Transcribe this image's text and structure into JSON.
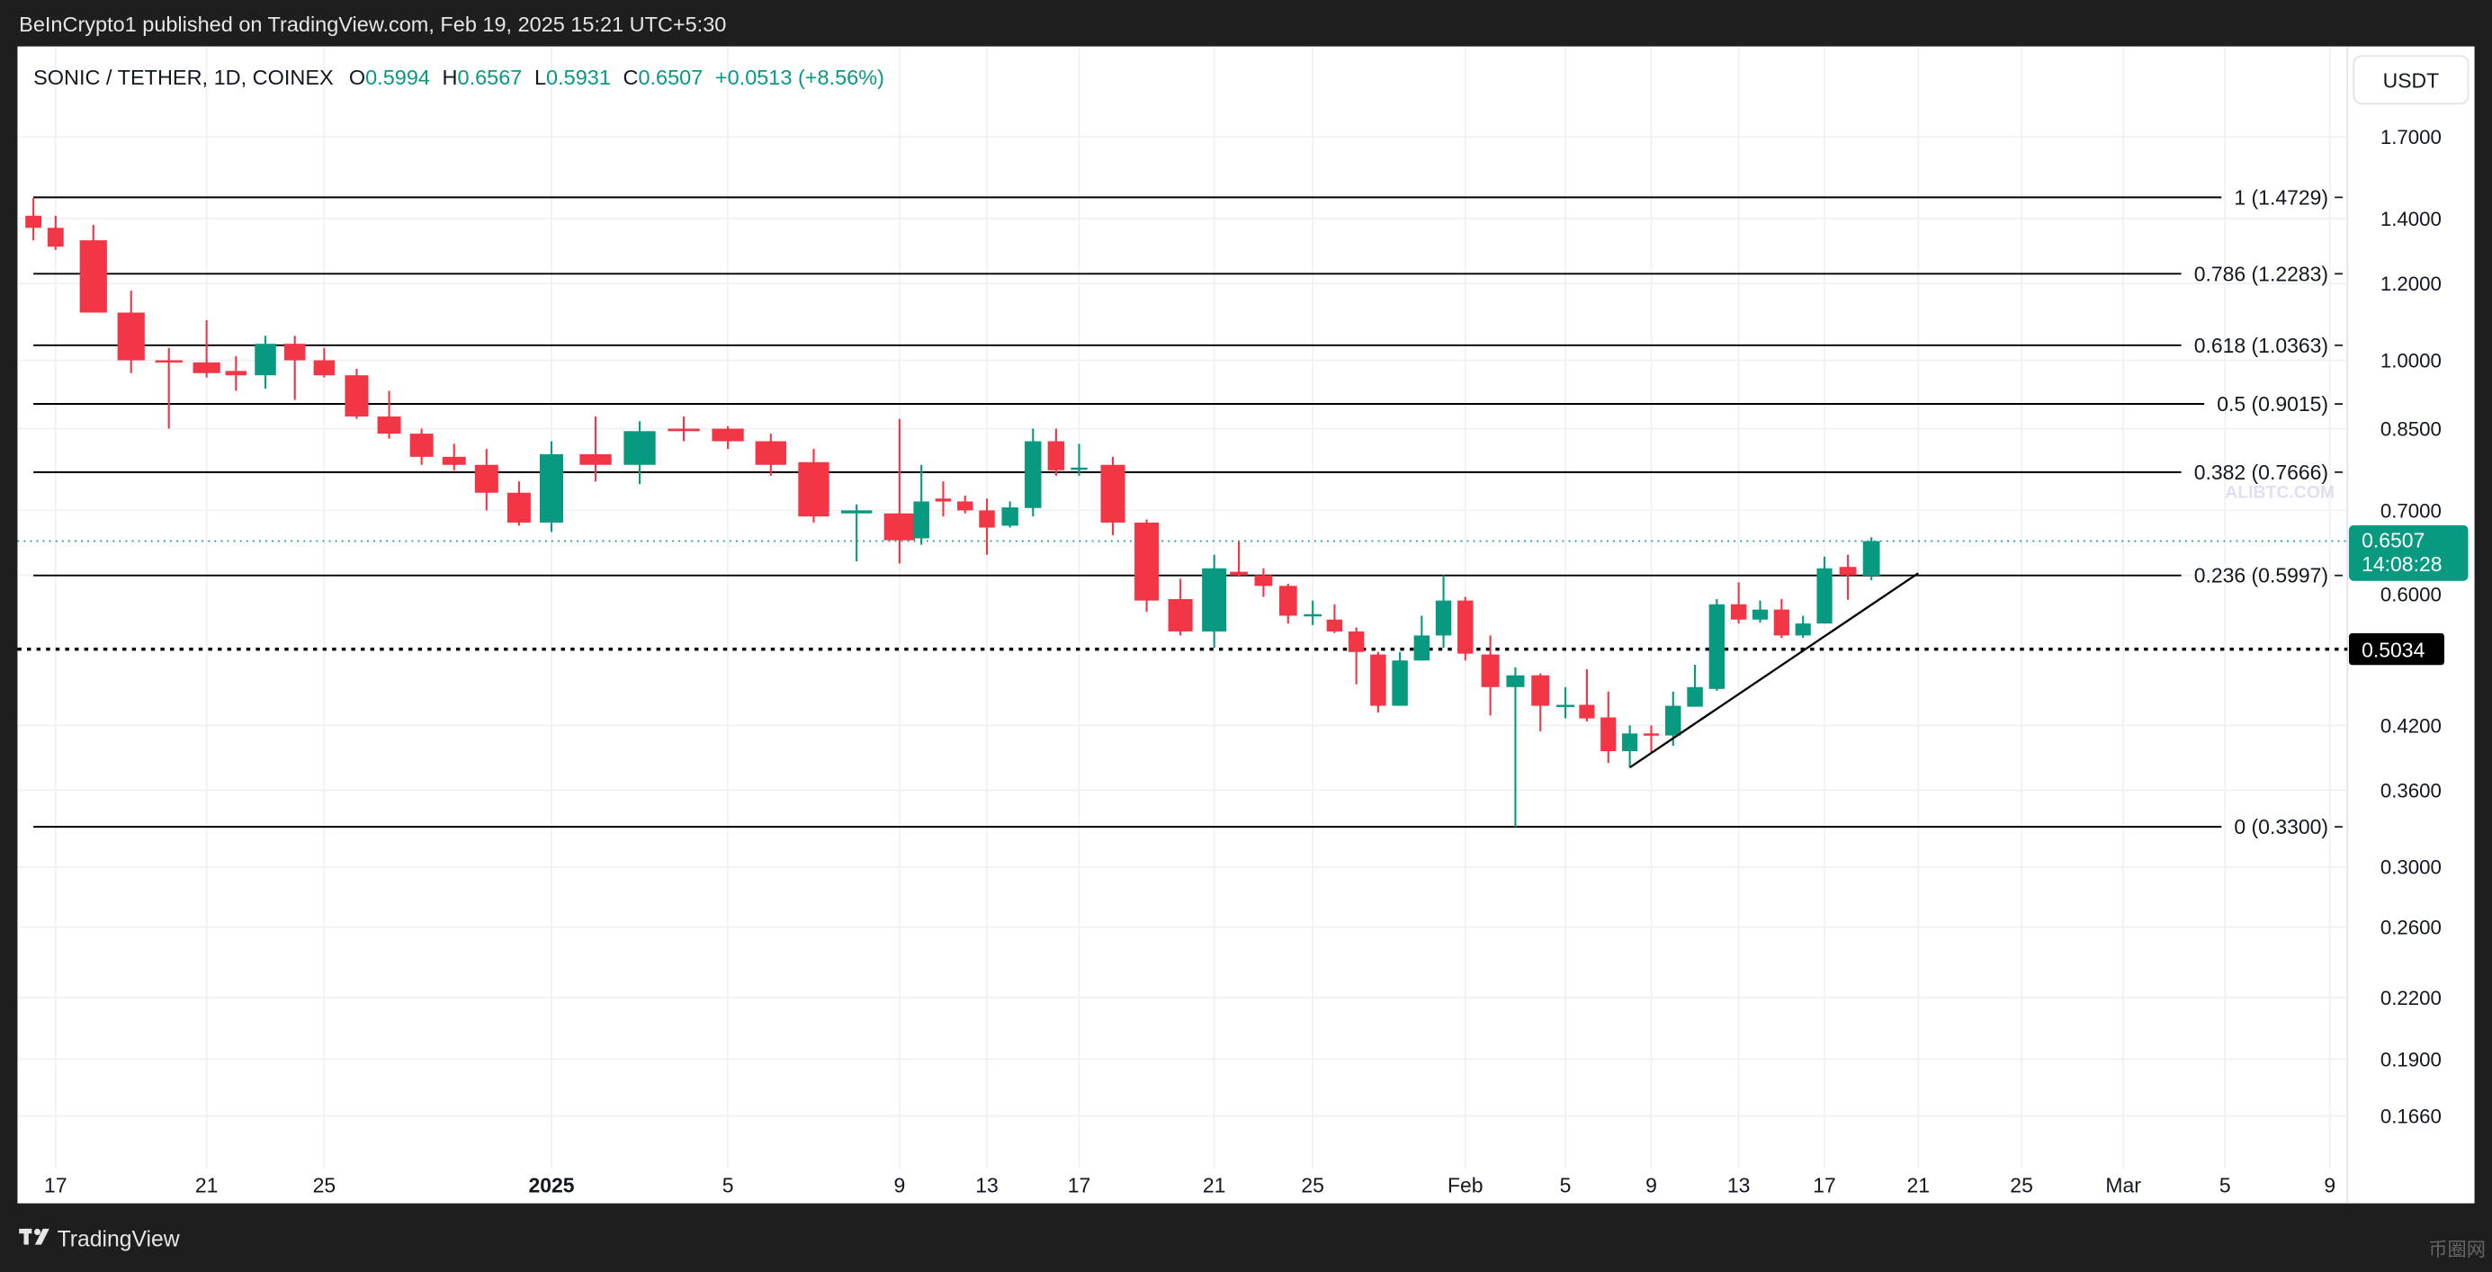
{
  "header": {
    "published": "BeInCrypto1 published on TradingView.com, Feb 19, 2025 15:21 UTC+5:30"
  },
  "legend": {
    "symbol": "SONIC / TETHER, 1D, COINEX",
    "o_label": "O",
    "o_value": "0.5994",
    "h_label": "H",
    "h_value": "0.6567",
    "l_label": "L",
    "l_value": "0.5931",
    "c_label": "C",
    "c_value": "0.6507",
    "change": "+0.0513 (+8.56%)"
  },
  "price_axis": {
    "currency_button": "USDT",
    "ticks": [
      "1.7000",
      "1.4000",
      "1.2000",
      "1.0000",
      "0.8500",
      "0.7000",
      "0.6000",
      "0.4200",
      "0.3600",
      "0.3000",
      "0.2600",
      "0.2200",
      "0.1900",
      "0.1660"
    ],
    "last_price_label": "0.6507",
    "countdown_label": "14:08:28",
    "line_price_label": "0.5034"
  },
  "time_axis": {
    "labels": [
      {
        "text": "17",
        "date": "2024-12-17",
        "major": false
      },
      {
        "text": "21",
        "date": "2024-12-21",
        "major": false
      },
      {
        "text": "25",
        "date": "2024-12-25",
        "major": false
      },
      {
        "text": "2025",
        "date": "2025-01-01",
        "major": true
      },
      {
        "text": "5",
        "date": "2025-01-05",
        "major": false
      },
      {
        "text": "9",
        "date": "2025-01-09",
        "major": false
      },
      {
        "text": "13",
        "date": "2025-01-13",
        "major": false
      },
      {
        "text": "17",
        "date": "2025-01-17",
        "major": false
      },
      {
        "text": "21",
        "date": "2025-01-21",
        "major": false
      },
      {
        "text": "25",
        "date": "2025-01-25",
        "major": false
      },
      {
        "text": "Feb",
        "date": "2025-02-01",
        "major": false
      },
      {
        "text": "5",
        "date": "2025-02-05",
        "major": false
      },
      {
        "text": "9",
        "date": "2025-02-09",
        "major": false
      },
      {
        "text": "13",
        "date": "2025-02-13",
        "major": false
      },
      {
        "text": "17",
        "date": "2025-02-17",
        "major": false
      },
      {
        "text": "21",
        "date": "2025-02-21",
        "major": false
      },
      {
        "text": "25",
        "date": "2025-02-25",
        "major": false
      },
      {
        "text": "Mar",
        "date": "2025-03-01",
        "major": false
      },
      {
        "text": "5",
        "date": "2025-03-05",
        "major": false
      },
      {
        "text": "9",
        "date": "2025-03-09",
        "major": false
      }
    ]
  },
  "fib_levels": [
    {
      "label": "1 (1.4729)",
      "price": 1.4729
    },
    {
      "label": "0.786 (1.2283)",
      "price": 1.2283
    },
    {
      "label": "0.618 (1.0363)",
      "price": 1.0363
    },
    {
      "label": "0.5 (0.9015)",
      "price": 0.9015
    },
    {
      "label": "0.382 (0.7666)",
      "price": 0.7666
    },
    {
      "label": "0.236 (0.5997)",
      "price": 0.5997
    },
    {
      "label": "0 (0.3300)",
      "price": 0.33
    }
  ],
  "horizontal_line_price": 0.5034,
  "last_price": 0.6507,
  "trendline": {
    "start": {
      "date": "2025-02-08",
      "price": 0.38
    },
    "end": {
      "date": "2025-02-21",
      "price": 0.603
    }
  },
  "colors": {
    "up": "#089981",
    "down": "#f23645",
    "line": "#000000"
  },
  "footer": {
    "brand": "TradingView"
  },
  "watermarks": [
    "ALIBTC.COM",
    "币圈网"
  ],
  "chart_data": {
    "type": "candlestick",
    "title": "SONIC / TETHER, 1D, COINEX",
    "scale": "log",
    "ylim": [
      0.16,
      1.75
    ],
    "start_date": "2024-12-16",
    "fields": [
      "open",
      "high",
      "low",
      "close"
    ],
    "candles": [
      [
        1.41,
        1.47,
        1.33,
        1.37
      ],
      [
        1.37,
        1.41,
        1.3,
        1.31
      ],
      [
        1.33,
        1.38,
        1.12,
        1.12
      ],
      [
        1.12,
        1.18,
        0.97,
        1.0
      ],
      [
        1.0,
        1.03,
        0.85,
        0.995
      ],
      [
        0.995,
        1.1,
        0.96,
        0.97
      ],
      [
        0.975,
        1.01,
        0.93,
        0.965
      ],
      [
        0.965,
        1.06,
        0.935,
        1.04
      ],
      [
        1.04,
        1.06,
        0.91,
        1.0
      ],
      [
        1.0,
        1.03,
        0.96,
        0.965
      ],
      [
        0.965,
        0.98,
        0.87,
        0.875
      ],
      [
        0.875,
        0.93,
        0.83,
        0.84
      ],
      [
        0.84,
        0.85,
        0.78,
        0.795
      ],
      [
        0.795,
        0.82,
        0.77,
        0.78
      ],
      [
        0.78,
        0.81,
        0.7,
        0.73
      ],
      [
        0.73,
        0.75,
        0.675,
        0.68
      ],
      [
        0.68,
        0.825,
        0.665,
        0.8
      ],
      [
        0.8,
        0.875,
        0.75,
        0.78
      ],
      [
        0.78,
        0.865,
        0.745,
        0.845
      ],
      [
        0.85,
        0.875,
        0.825,
        0.845
      ],
      [
        0.85,
        0.855,
        0.81,
        0.825
      ],
      [
        0.825,
        0.84,
        0.76,
        0.78
      ],
      [
        0.785,
        0.81,
        0.68,
        0.69
      ],
      [
        0.695,
        0.71,
        0.62,
        0.7
      ],
      [
        0.695,
        0.87,
        0.617,
        0.652
      ],
      [
        0.655,
        0.78,
        0.645,
        0.715
      ],
      [
        0.72,
        0.75,
        0.69,
        0.715
      ],
      [
        0.715,
        0.725,
        0.695,
        0.7
      ],
      [
        0.7,
        0.72,
        0.63,
        0.672
      ],
      [
        0.675,
        0.715,
        0.672,
        0.705
      ],
      [
        0.704,
        0.85,
        0.69,
        0.825
      ],
      [
        0.825,
        0.85,
        0.76,
        0.77
      ],
      [
        0.772,
        0.82,
        0.76,
        0.775
      ],
      [
        0.78,
        0.795,
        0.66,
        0.68
      ],
      [
        0.68,
        0.685,
        0.55,
        0.565
      ],
      [
        0.567,
        0.595,
        0.52,
        0.525
      ],
      [
        0.525,
        0.63,
        0.505,
        0.61
      ],
      [
        0.605,
        0.65,
        0.598,
        0.6
      ],
      [
        0.6,
        0.61,
        0.57,
        0.585
      ],
      [
        0.585,
        0.588,
        0.535,
        0.545
      ],
      [
        0.545,
        0.565,
        0.533,
        0.547
      ],
      [
        0.54,
        0.56,
        0.523,
        0.525
      ],
      [
        0.525,
        0.53,
        0.463,
        0.5
      ],
      [
        0.497,
        0.5,
        0.433,
        0.44
      ],
      [
        0.44,
        0.5,
        0.44,
        0.49
      ],
      [
        0.49,
        0.545,
        0.49,
        0.52
      ],
      [
        0.52,
        0.6,
        0.505,
        0.565
      ],
      [
        0.565,
        0.57,
        0.49,
        0.498
      ],
      [
        0.497,
        0.52,
        0.43,
        0.46
      ],
      [
        0.46,
        0.482,
        0.33,
        0.473
      ],
      [
        0.473,
        0.475,
        0.414,
        0.44
      ],
      [
        0.44,
        0.46,
        0.427,
        0.441
      ],
      [
        0.441,
        0.48,
        0.424,
        0.427
      ],
      [
        0.428,
        0.455,
        0.384,
        0.395
      ],
      [
        0.395,
        0.42,
        0.38,
        0.412
      ],
      [
        0.412,
        0.42,
        0.393,
        0.41
      ],
      [
        0.41,
        0.455,
        0.4,
        0.44
      ],
      [
        0.439,
        0.485,
        0.439,
        0.46
      ],
      [
        0.458,
        0.567,
        0.456,
        0.56
      ],
      [
        0.56,
        0.59,
        0.535,
        0.54
      ],
      [
        0.54,
        0.565,
        0.536,
        0.553
      ],
      [
        0.553,
        0.567,
        0.517,
        0.52
      ],
      [
        0.52,
        0.545,
        0.517,
        0.535
      ],
      [
        0.535,
        0.627,
        0.535,
        0.61
      ],
      [
        0.612,
        0.63,
        0.566,
        0.6
      ],
      [
        0.5994,
        0.6567,
        0.5931,
        0.6507
      ]
    ]
  }
}
